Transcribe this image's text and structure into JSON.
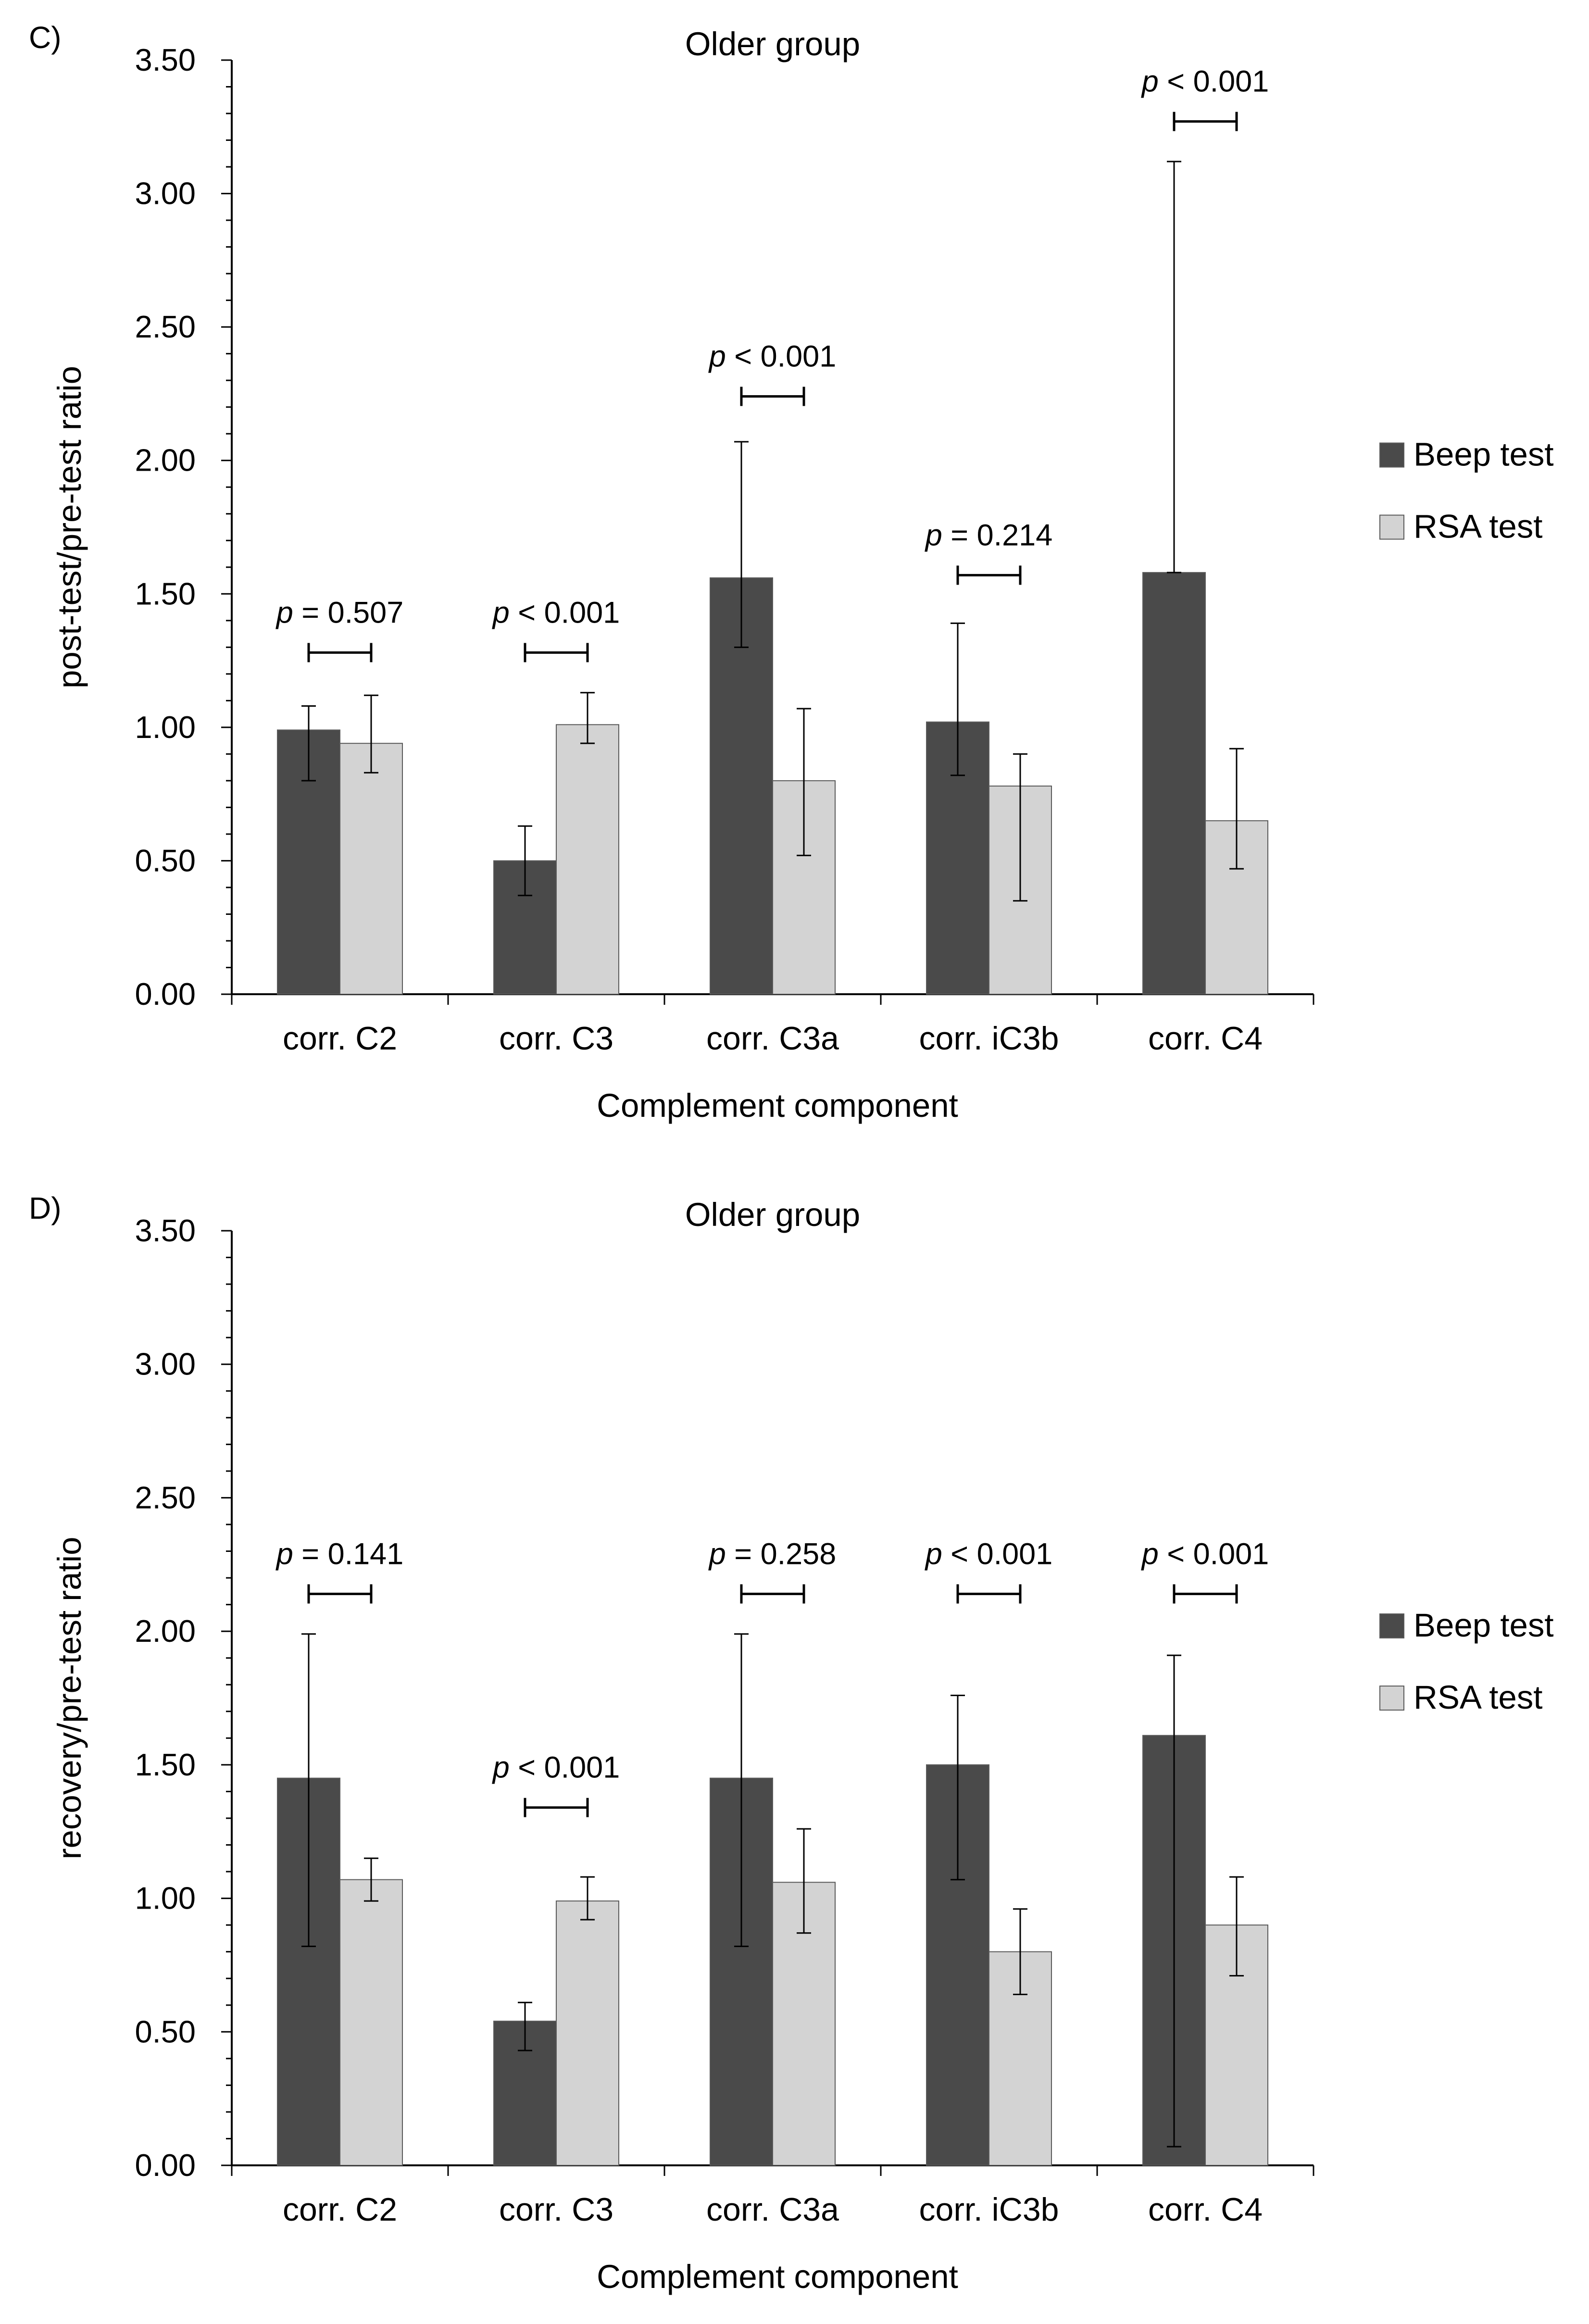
{
  "chart_data": [
    {
      "type": "bar",
      "panel": "C)",
      "title": "Older group",
      "xlabel": "Complement component",
      "ylabel": "post-test/pre-test ratio",
      "ylim": [
        0,
        3.5
      ],
      "yticks": [
        "0.00",
        "0.50",
        "1.00",
        "1.50",
        "2.00",
        "2.50",
        "3.00",
        "3.50"
      ],
      "categories": [
        "corr. C2",
        "corr. C3",
        "corr. C3a",
        "corr. iC3b",
        "corr. C4"
      ],
      "series": [
        {
          "name": "Beep test",
          "color": "#4a4a4a",
          "values": [
            0.99,
            0.5,
            1.56,
            1.02,
            1.58
          ],
          "err_low": [
            0.8,
            0.37,
            1.3,
            0.82,
            1.58
          ],
          "err_high": [
            1.08,
            0.63,
            2.07,
            1.39,
            3.12
          ]
        },
        {
          "name": "RSA test",
          "color": "#d3d3d3",
          "values": [
            0.94,
            1.01,
            0.8,
            0.78,
            0.65
          ],
          "err_low": [
            0.83,
            0.94,
            0.52,
            0.35,
            0.47
          ],
          "err_high": [
            1.12,
            1.13,
            1.07,
            0.9,
            0.92
          ]
        }
      ],
      "annotations": [
        {
          "p": "p",
          "text": " = 0.507"
        },
        {
          "p": "p",
          "text": " < 0.001"
        },
        {
          "p": "p",
          "text": " < 0.001"
        },
        {
          "p": "p",
          "text": " = 0.214"
        },
        {
          "p": "p",
          "text": " < 0.001"
        }
      ],
      "annotation_levels": [
        1.28,
        1.28,
        2.24,
        1.57,
        3.27
      ],
      "legend": [
        "Beep test",
        "RSA test"
      ]
    },
    {
      "type": "bar",
      "panel": "D)",
      "title": "Older group",
      "xlabel": "Complement component",
      "ylabel": "recovery/pre-test ratio",
      "ylim": [
        0,
        3.5
      ],
      "yticks": [
        "0.00",
        "0.50",
        "1.00",
        "1.50",
        "2.00",
        "2.50",
        "3.00",
        "3.50"
      ],
      "categories": [
        "corr. C2",
        "corr. C3",
        "corr. C3a",
        "corr. iC3b",
        "corr. C4"
      ],
      "series": [
        {
          "name": "Beep test",
          "color": "#4a4a4a",
          "values": [
            1.45,
            0.54,
            1.45,
            1.5,
            1.61
          ],
          "err_low": [
            0.82,
            0.43,
            0.82,
            1.07,
            0.07
          ],
          "err_high": [
            1.99,
            0.61,
            1.99,
            1.76,
            1.91
          ]
        },
        {
          "name": "RSA test",
          "color": "#d3d3d3",
          "values": [
            1.07,
            0.99,
            1.06,
            0.8,
            0.9
          ],
          "err_low": [
            0.99,
            0.92,
            0.87,
            0.64,
            0.71
          ],
          "err_high": [
            1.15,
            1.08,
            1.26,
            0.96,
            1.08
          ]
        }
      ],
      "annotations": [
        {
          "p": "p",
          "text": " = 0.141"
        },
        {
          "p": "p",
          "text": " < 0.001"
        },
        {
          "p": "p",
          "text": " = 0.258"
        },
        {
          "p": "p",
          "text": " < 0.001"
        },
        {
          "p": "p",
          "text": " < 0.001"
        }
      ],
      "annotation_levels": [
        2.14,
        1.34,
        2.14,
        2.14,
        2.14
      ],
      "legend": [
        "Beep test",
        "RSA test"
      ]
    }
  ]
}
